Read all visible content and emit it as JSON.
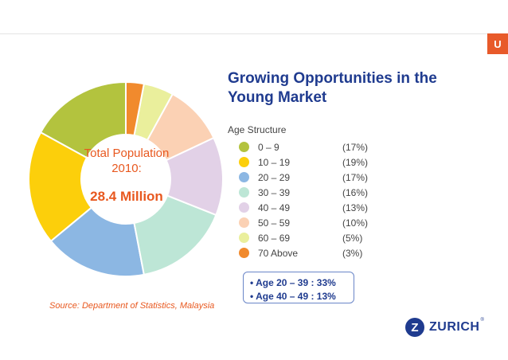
{
  "top_tab": {
    "label": "U",
    "color": "#e85a2a"
  },
  "chart_data": {
    "type": "pie",
    "variant": "donut",
    "categories": [
      "0 – 9",
      "10 – 19",
      "20 – 29",
      "30 – 39",
      "40 – 49",
      "50 – 59",
      "60 – 69",
      "70 Above"
    ],
    "values": [
      17,
      19,
      17,
      16,
      13,
      10,
      5,
      3
    ],
    "value_labels": [
      "(17%)",
      "(19%)",
      "(17%)",
      "(16%)",
      "(13%)",
      "(10%)",
      "(5%)",
      "(3%)"
    ],
    "colors": [
      "#b3c33e",
      "#fccf0b",
      "#8cb7e3",
      "#bde6d6",
      "#e2d1e7",
      "#fbd1b4",
      "#eaef9c",
      "#f18a2d"
    ],
    "start": "12 o'clock",
    "direction": "counter-clockwise",
    "legend_position": "right",
    "legend_heading": "Age Structure",
    "center_label": "Total Population 2010:",
    "center_value": "28.4 Million"
  },
  "title": "Growing Opportunities in the Young Market",
  "source": "Source: Department of Statistics, Malaysia",
  "callout": {
    "items": [
      "• Age 20 – 39 : 33%",
      "• Age 40 – 49 : 13%"
    ]
  },
  "brand": {
    "mark": "Z",
    "name": "ZURICH",
    "registered": "®"
  },
  "colors": {
    "accent": "#e8581f",
    "brand_blue": "#1f3b8f"
  }
}
